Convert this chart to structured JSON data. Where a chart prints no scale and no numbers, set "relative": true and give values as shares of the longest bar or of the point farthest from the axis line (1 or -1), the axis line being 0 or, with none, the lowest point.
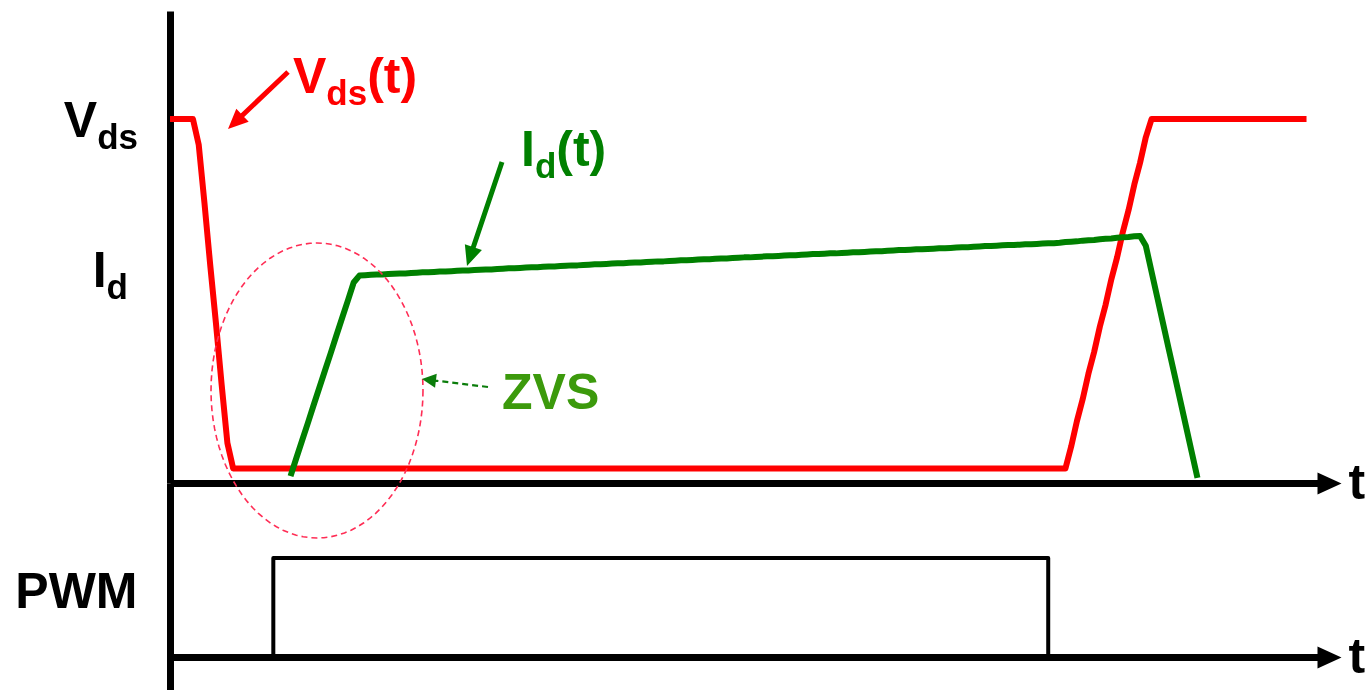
{
  "chart_data": [
    {
      "type": "line",
      "relative": true,
      "xlabel": "t",
      "categories": [
        null,
        null,
        null,
        null,
        null,
        null,
        null,
        null,
        null,
        null,
        null,
        null,
        null,
        null,
        null,
        null,
        null,
        null,
        null,
        null,
        null,
        null,
        null,
        null,
        null,
        null,
        null,
        null,
        null,
        null,
        null,
        null,
        null,
        null,
        null,
        null,
        null,
        null,
        null,
        null,
        null,
        null,
        null,
        null,
        null,
        null,
        null,
        null,
        null,
        null,
        null,
        null,
        null,
        null,
        null,
        null,
        null,
        null,
        null,
        null,
        null,
        null,
        null,
        null,
        null,
        null,
        null,
        null,
        null,
        null,
        null,
        null,
        null,
        null,
        null,
        null,
        null,
        null,
        null,
        null,
        null,
        null,
        null,
        null,
        null,
        null,
        null,
        null,
        null,
        null,
        null,
        null,
        null,
        null,
        null,
        null,
        null,
        null,
        null,
        null,
        null,
        null,
        null,
        null,
        null,
        null,
        null,
        null,
        null,
        null,
        null,
        null,
        null,
        null,
        null,
        null,
        null,
        null,
        null,
        null,
        null,
        null,
        null,
        null,
        null,
        null,
        null,
        null,
        null,
        null,
        null,
        null,
        null,
        null,
        null,
        null,
        null,
        null,
        null,
        null,
        null,
        null,
        null,
        null,
        null,
        null,
        null,
        null,
        null,
        null,
        null,
        null,
        null,
        null,
        null,
        null,
        null,
        null,
        null,
        null,
        null,
        null,
        null,
        null,
        null,
        null,
        null,
        null,
        null,
        null,
        null,
        null,
        null,
        null,
        null,
        null,
        null,
        null,
        null,
        null,
        null,
        null,
        null,
        null,
        null,
        null,
        null,
        null,
        null,
        null,
        null,
        null,
        null,
        null,
        null,
        null,
        null,
        null,
        null,
        null,
        null
      ],
      "series": [
        {
          "name": "V$_{ds}$(t)",
          "color": "#ff0000",
          "values": [
            1,
            1,
            1,
            1,
            1,
            0.93,
            0.77,
            0.6,
            0.44,
            0.27,
            0.11,
            0.04,
            0.04,
            0.04,
            0.04,
            0.04,
            0.04,
            0.04,
            0.04,
            0.04,
            0.04,
            0.04,
            0.04,
            0.04,
            0.04,
            0.04,
            0.04,
            0.04,
            0.04,
            0.04,
            0.04,
            0.04,
            0.04,
            0.04,
            0.04,
            0.04,
            0.04,
            0.04,
            0.04,
            0.04,
            0.04,
            0.04,
            0.04,
            0.04,
            0.04,
            0.04,
            0.04,
            0.04,
            0.04,
            0.04,
            0.04,
            0.04,
            0.04,
            0.04,
            0.04,
            0.04,
            0.04,
            0.04,
            0.04,
            0.04,
            0.04,
            0.04,
            0.04,
            0.04,
            0.04,
            0.04,
            0.04,
            0.04,
            0.04,
            0.04,
            0.04,
            0.04,
            0.04,
            0.04,
            0.04,
            0.04,
            0.04,
            0.04,
            0.04,
            0.04,
            0.04,
            0.04,
            0.04,
            0.04,
            0.04,
            0.04,
            0.04,
            0.04,
            0.04,
            0.04,
            0.04,
            0.04,
            0.04,
            0.04,
            0.04,
            0.04,
            0.04,
            0.04,
            0.04,
            0.04,
            0.04,
            0.04,
            0.04,
            0.04,
            0.04,
            0.04,
            0.04,
            0.04,
            0.04,
            0.04,
            0.04,
            0.04,
            0.04,
            0.04,
            0.04,
            0.04,
            0.04,
            0.04,
            0.04,
            0.04,
            0.04,
            0.04,
            0.04,
            0.04,
            0.04,
            0.04,
            0.04,
            0.04,
            0.04,
            0.04,
            0.04,
            0.04,
            0.04,
            0.04,
            0.04,
            0.04,
            0.04,
            0.04,
            0.04,
            0.04,
            0.04,
            0.04,
            0.04,
            0.04,
            0.04,
            0.04,
            0.04,
            0.04,
            0.04,
            0.04,
            0.04,
            0.04,
            0.04,
            0.04,
            0.04,
            0.04,
            0.04,
            0.1,
            0.17,
            0.23,
            0.3,
            0.36,
            0.43,
            0.49,
            0.56,
            0.62,
            0.69,
            0.75,
            0.82,
            0.88,
            0.95,
            1,
            1,
            1,
            1,
            1,
            1,
            1,
            1,
            1,
            1,
            1,
            1,
            1,
            1,
            1,
            1,
            1,
            1,
            1,
            1,
            1,
            1,
            1,
            1,
            1,
            1,
            1,
            1,
            null,
            null
          ]
        },
        {
          "name": "I$_{d}$(t)",
          "color": "#008000",
          "values": [
            null,
            null,
            null,
            null,
            null,
            null,
            null,
            null,
            null,
            null,
            null,
            null,
            null,
            null,
            null,
            null,
            null,
            null,
            null,
            null,
            null,
            0.019,
            0.068,
            0.116,
            0.164,
            0.213,
            0.261,
            0.309,
            0.357,
            0.406,
            0.454,
            0.502,
            0.551,
            0.57,
            0.571,
            0.572,
            0.573,
            0.573,
            0.574,
            0.575,
            0.576,
            0.576,
            0.577,
            0.578,
            0.579,
            0.579,
            0.58,
            0.581,
            0.581,
            0.582,
            0.583,
            0.584,
            0.584,
            0.585,
            0.586,
            0.587,
            0.587,
            0.588,
            0.589,
            0.59,
            0.59,
            0.591,
            0.592,
            0.593,
            0.593,
            0.594,
            0.595,
            0.595,
            0.596,
            0.597,
            0.598,
            0.598,
            0.599,
            0.6,
            0.601,
            0.601,
            0.602,
            0.603,
            0.604,
            0.604,
            0.605,
            0.606,
            0.606,
            0.607,
            0.608,
            0.609,
            0.609,
            0.61,
            0.611,
            0.612,
            0.612,
            0.613,
            0.614,
            0.615,
            0.615,
            0.616,
            0.617,
            0.617,
            0.618,
            0.619,
            0.62,
            0.62,
            0.621,
            0.622,
            0.623,
            0.623,
            0.624,
            0.625,
            0.626,
            0.626,
            0.627,
            0.628,
            0.629,
            0.629,
            0.63,
            0.631,
            0.631,
            0.632,
            0.633,
            0.634,
            0.634,
            0.635,
            0.636,
            0.637,
            0.637,
            0.638,
            0.639,
            0.64,
            0.64,
            0.641,
            0.642,
            0.642,
            0.643,
            0.644,
            0.645,
            0.645,
            0.646,
            0.647,
            0.648,
            0.648,
            0.649,
            0.65,
            0.651,
            0.651,
            0.652,
            0.653,
            0.654,
            0.654,
            0.655,
            0.656,
            0.656,
            0.657,
            0.658,
            0.659,
            0.659,
            0.66,
            0.662,
            0.663,
            0.664,
            0.666,
            0.667,
            0.668,
            0.67,
            0.671,
            0.672,
            0.674,
            0.675,
            0.676,
            0.678,
            0.679,
            0.652,
            0.581,
            0.51,
            0.439,
            0.368,
            0.298,
            0.227,
            0.156,
            0.085,
            0.014,
            null,
            null,
            null,
            null,
            null,
            null,
            null,
            null,
            null,
            null,
            null,
            null,
            null,
            null,
            null,
            null,
            null,
            null,
            null,
            null,
            null
          ]
        }
      ],
      "annotations": [
        "V$_{ds}$",
        "I$_{d}$",
        "ZVS"
      ]
    },
    {
      "type": "step",
      "relative": true,
      "xlabel": "t",
      "ylabel": "PWM",
      "categories": [
        null,
        null,
        null,
        null,
        null,
        null,
        null,
        null,
        null,
        null,
        null,
        null,
        null,
        null,
        null,
        null,
        null,
        null,
        null,
        null,
        null,
        null,
        null,
        null,
        null,
        null,
        null,
        null,
        null,
        null,
        null,
        null,
        null,
        null,
        null,
        null,
        null,
        null,
        null,
        null,
        null,
        null,
        null,
        null,
        null,
        null,
        null,
        null,
        null,
        null,
        null,
        null,
        null,
        null,
        null,
        null,
        null,
        null,
        null,
        null,
        null,
        null,
        null,
        null,
        null,
        null,
        null,
        null,
        null,
        null,
        null,
        null,
        null,
        null,
        null,
        null,
        null,
        null,
        null,
        null,
        null,
        null,
        null,
        null,
        null,
        null,
        null,
        null,
        null,
        null,
        null,
        null,
        null,
        null,
        null,
        null,
        null,
        null,
        null,
        null,
        null,
        null,
        null,
        null,
        null,
        null,
        null,
        null,
        null,
        null,
        null,
        null,
        null,
        null,
        null,
        null,
        null,
        null,
        null,
        null,
        null,
        null,
        null,
        null,
        null,
        null,
        null,
        null,
        null,
        null,
        null,
        null,
        null,
        null,
        null,
        null,
        null,
        null,
        null,
        null,
        null,
        null,
        null,
        null,
        null,
        null,
        null,
        null,
        null,
        null,
        null,
        null,
        null,
        null,
        null,
        null,
        null,
        null,
        null,
        null,
        null,
        null,
        null,
        null,
        null,
        null,
        null,
        null,
        null,
        null,
        null,
        null,
        null,
        null,
        null,
        null,
        null,
        null,
        null,
        null,
        null,
        null,
        null,
        null,
        null,
        null,
        null,
        null,
        null,
        null,
        null,
        null,
        null,
        null,
        null,
        null,
        null,
        null,
        null,
        null,
        null
      ],
      "series": [
        {
          "color": "#000000",
          "values": [
            null,
            null,
            null,
            null,
            null,
            null,
            null,
            null,
            null,
            null,
            null,
            null,
            null,
            null,
            null,
            null,
            null,
            0,
            1,
            1,
            1,
            1,
            1,
            1,
            1,
            1,
            1,
            1,
            1,
            1,
            1,
            1,
            1,
            1,
            1,
            1,
            1,
            1,
            1,
            1,
            1,
            1,
            1,
            1,
            1,
            1,
            1,
            1,
            1,
            1,
            1,
            1,
            1,
            1,
            1,
            1,
            1,
            1,
            1,
            1,
            1,
            1,
            1,
            1,
            1,
            1,
            1,
            1,
            1,
            1,
            1,
            1,
            1,
            1,
            1,
            1,
            1,
            1,
            1,
            1,
            1,
            1,
            1,
            1,
            1,
            1,
            1,
            1,
            1,
            1,
            1,
            1,
            1,
            1,
            1,
            1,
            1,
            1,
            1,
            1,
            1,
            1,
            1,
            1,
            1,
            1,
            1,
            1,
            1,
            1,
            1,
            1,
            1,
            1,
            1,
            1,
            1,
            1,
            1,
            1,
            1,
            1,
            1,
            1,
            1,
            1,
            1,
            1,
            1,
            1,
            1,
            1,
            1,
            1,
            1,
            1,
            1,
            1,
            1,
            1,
            1,
            1,
            1,
            1,
            1,
            1,
            1,
            1,
            1,
            1,
            1,
            1,
            1,
            0,
            null,
            null,
            null,
            null,
            null,
            null,
            null,
            null,
            null,
            null,
            null,
            null,
            null,
            null,
            null,
            null,
            null,
            null,
            null,
            null,
            null,
            null,
            null,
            null,
            null,
            null,
            null,
            null,
            null,
            null,
            null,
            null,
            null,
            null,
            null,
            null,
            null,
            null,
            null,
            null,
            null,
            null,
            null,
            null,
            null,
            null,
            null
          ]
        }
      ]
    }
  ]
}
